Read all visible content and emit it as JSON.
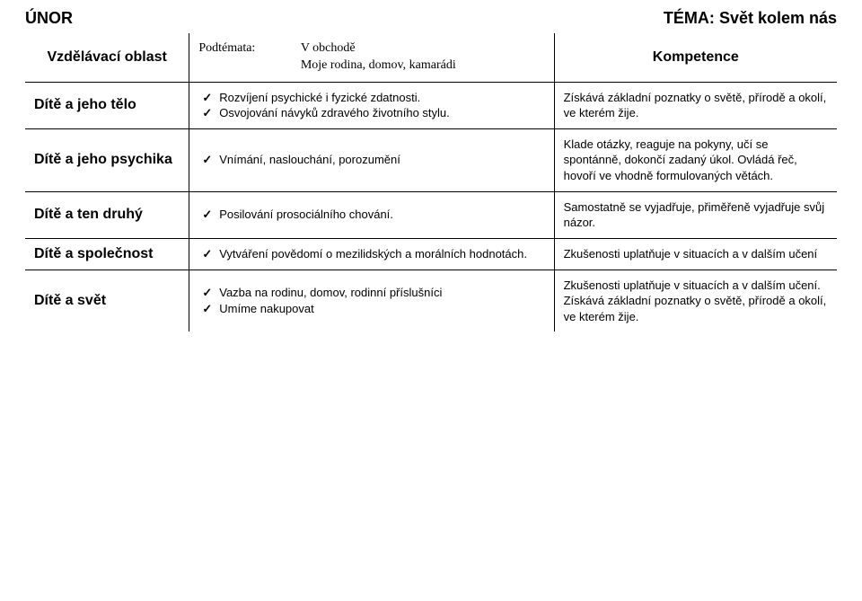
{
  "header": {
    "month": "ÚNOR",
    "tema_label": "TÉMA:",
    "tema_value": "Svět kolem nás",
    "vzdelavaci_oblast": "Vzdělávací oblast",
    "kompetence": "Kompetence",
    "podtemata_label": "Podtémata:",
    "podtemata_line1": "V obchodě",
    "podtemata_line2": "Moje rodina, domov, kamarádi"
  },
  "rows": [
    {
      "label": "Dítě a jeho tělo",
      "bullets": [
        "Rozvíjení psychické i fyzické zdatnosti.",
        "Osvojování návyků zdravého životního stylu."
      ],
      "right": "Získává základní poznatky o světě, přírodě a okolí, ve kterém žije."
    },
    {
      "label": "Dítě a jeho psychika",
      "bullets": [
        "Vnímání, naslouchání, porozumění"
      ],
      "right": "Klade otázky, reaguje na pokyny, učí se spontánně, dokončí zadaný úkol. Ovládá řeč, hovoří ve vhodně formulovaných větách."
    },
    {
      "label": "Dítě a ten druhý",
      "bullets": [
        "Posilování prosociálního chování."
      ],
      "right": "Samostatně se vyjadřuje, přiměřeně vyjadřuje svůj názor."
    },
    {
      "label": "Dítě a společnost",
      "bullets": [
        "Vytváření povědomí o mezilidských a morálních hodnotách."
      ],
      "right": "Zkušenosti uplatňuje v situacích a v dalším učení"
    },
    {
      "label": "Dítě a svět",
      "bullets": [
        "Vazba na rodinu, domov, rodinní příslušníci",
        "Umíme nakupovat"
      ],
      "right": "Zkušenosti uplatňuje v situacích a v dalším učení. Získává základní poznatky o světě, přírodě a okolí, ve kterém žije."
    }
  ]
}
